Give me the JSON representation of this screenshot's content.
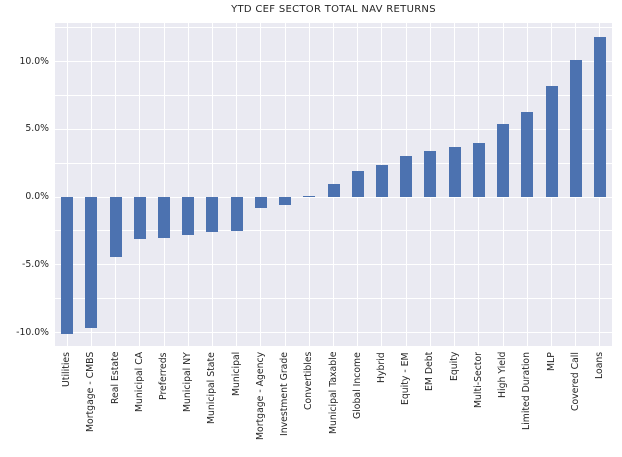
{
  "chart_data": {
    "type": "bar",
    "title": "YTD CEF SECTOR TOTAL NAV RETURNS",
    "xlabel": "",
    "ylabel": "",
    "categories": [
      "Utilities",
      "Mortgage - CMBS",
      "Real Estate",
      "Municipal CA",
      "Preferreds",
      "Municipal NY",
      "Municipal State",
      "Municipal",
      "Mortgage - Agency",
      "Investment Grade",
      "Convertibles",
      "Municipal Taxable",
      "Global Income",
      "Hybrid",
      "Equity - EM",
      "EM Debt",
      "Equity",
      "Multi-Sector",
      "High Yield",
      "Limited Duration",
      "MLP",
      "Covered Call",
      "Loans"
    ],
    "values": [
      -10.1,
      -9.7,
      -4.4,
      -3.1,
      -3.0,
      -2.8,
      -2.6,
      -2.5,
      -0.8,
      -0.6,
      0.05,
      0.95,
      1.9,
      2.4,
      3.0,
      3.4,
      3.7,
      4.0,
      5.4,
      6.3,
      8.2,
      10.1,
      11.8
    ],
    "value_format": "percent",
    "y_ticks": [
      10,
      5,
      0,
      -5,
      -10
    ],
    "y_tick_labels": [
      "10.0%",
      "5.0%",
      "0.0%",
      "-5.0%",
      "-10.0%"
    ],
    "ylim": [
      -11.0,
      12.85
    ],
    "grid": true,
    "gridline_step": 2.5,
    "legend": false,
    "x_tick_rotation_deg": 90
  },
  "style": {
    "bar_color": "#4c72b0",
    "plot_background": "#eaeaf2",
    "gridline_color": "#ffffff",
    "figure_background": "#ffffff",
    "text_color": "#262626"
  }
}
